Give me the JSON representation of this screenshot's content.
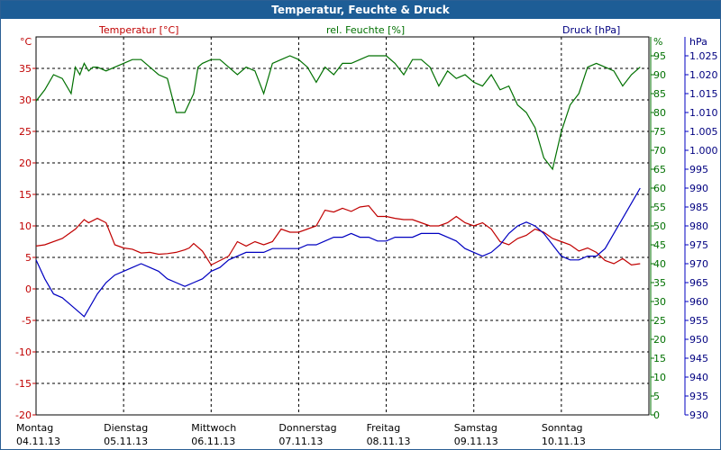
{
  "window": {
    "title": "Temperatur, Feuchte & Druck"
  },
  "colors": {
    "temperature": "#c00000",
    "humidity": "#007000",
    "pressure": "#0000c0",
    "titlebar": "#1d5d96"
  },
  "chart_data": {
    "type": "line",
    "title": "Temperatur, Feuchte & Druck",
    "grid": true,
    "x_ticks": [
      {
        "day": "Montag",
        "date": "04.11.13"
      },
      {
        "day": "Dienstag",
        "date": "05.11.13"
      },
      {
        "day": "Mittwoch",
        "date": "06.11.13"
      },
      {
        "day": "Donnerstag",
        "date": "07.11.13"
      },
      {
        "day": "Freitag",
        "date": "08.11.13"
      },
      {
        "day": "Samstag",
        "date": "09.11.13"
      },
      {
        "day": "Sonntag",
        "date": "10.11.13"
      }
    ],
    "xlim": [
      "04.11.13 00:00",
      "11.11.13 00:00"
    ],
    "axes": {
      "temperature": {
        "label": "Temperatur [°C]",
        "unit": "°C",
        "ylim": [
          -20,
          40
        ],
        "ticks": [
          "35",
          "30",
          "25",
          "20",
          "15",
          "10",
          "5",
          "0",
          "-5",
          "-10",
          "-15",
          "-20"
        ]
      },
      "humidity": {
        "label": "rel. Feuchte [%]",
        "unit": "%",
        "ylim": [
          0,
          100
        ],
        "ticks": [
          "95",
          "90",
          "85",
          "80",
          "75",
          "70",
          "65",
          "60",
          "55",
          "50",
          "45",
          "40",
          "35",
          "30",
          "25",
          "20",
          "15",
          "10",
          "5",
          "0"
        ]
      },
      "pressure": {
        "label": "Druck [hPa]",
        "unit": "hPa",
        "ylim": [
          930,
          1030
        ],
        "ticks": [
          "1.025",
          "1.020",
          "1.015",
          "1.010",
          "1.005",
          "1.000",
          "995",
          "990",
          "985",
          "980",
          "975",
          "970",
          "965",
          "960",
          "955",
          "950",
          "945",
          "940",
          "935",
          "930"
        ]
      }
    },
    "series": [
      {
        "name": "Temperatur [°C]",
        "axis": "temperature",
        "x_days": [
          0,
          0.1,
          0.3,
          0.45,
          0.55,
          0.6,
          0.7,
          0.8,
          0.9,
          1.0,
          1.1,
          1.2,
          1.3,
          1.4,
          1.5,
          1.6,
          1.7,
          1.75,
          1.8,
          1.9,
          2.0,
          2.1,
          2.2,
          2.3,
          2.4,
          2.5,
          2.6,
          2.7,
          2.8,
          2.9,
          3.0,
          3.1,
          3.2,
          3.3,
          3.4,
          3.5,
          3.6,
          3.7,
          3.8,
          3.9,
          4.0,
          4.1,
          4.2,
          4.3,
          4.4,
          4.5,
          4.6,
          4.7,
          4.8,
          4.9,
          5.0,
          5.1,
          5.2,
          5.3,
          5.4,
          5.5,
          5.6,
          5.7,
          5.8,
          5.9,
          6.0,
          6.1,
          6.2,
          6.3,
          6.4,
          6.5,
          6.6,
          6.7,
          6.8,
          6.9
        ],
        "values": [
          6.8,
          7,
          8,
          9.5,
          11,
          10.5,
          11.2,
          10.5,
          7,
          6.5,
          6.3,
          5.7,
          5.8,
          5.5,
          5.6,
          5.8,
          6.2,
          6.5,
          7.2,
          6.0,
          3.8,
          4.5,
          5.2,
          7.5,
          6.8,
          7.5,
          7.0,
          7.5,
          9.5,
          9.0,
          9.0,
          9.5,
          10,
          12.5,
          12.2,
          12.8,
          12.3,
          13.0,
          13.2,
          11.5,
          11.5,
          11.2,
          11.0,
          11.0,
          10.5,
          10.0,
          10.0,
          10.5,
          11.5,
          10.5,
          10.0,
          10.5,
          9.5,
          7.5,
          7.0,
          8.0,
          8.5,
          9.5,
          9.0,
          8.0,
          7.5,
          7.0,
          6.0,
          6.5,
          5.8,
          4.5,
          4.0,
          4.8,
          3.8,
          4.0
        ]
      },
      {
        "name": "rel. Feuchte [%]",
        "axis": "humidity",
        "x_days": [
          0,
          0.1,
          0.2,
          0.3,
          0.4,
          0.45,
          0.5,
          0.55,
          0.6,
          0.65,
          0.7,
          0.8,
          0.9,
          1.0,
          1.1,
          1.2,
          1.3,
          1.4,
          1.5,
          1.6,
          1.7,
          1.8,
          1.85,
          1.9,
          2.0,
          2.1,
          2.2,
          2.3,
          2.4,
          2.5,
          2.6,
          2.7,
          2.8,
          2.9,
          3.0,
          3.1,
          3.2,
          3.3,
          3.4,
          3.5,
          3.6,
          3.7,
          3.8,
          3.9,
          4.0,
          4.1,
          4.2,
          4.3,
          4.4,
          4.5,
          4.6,
          4.7,
          4.8,
          4.9,
          5.0,
          5.1,
          5.2,
          5.3,
          5.4,
          5.5,
          5.6,
          5.7,
          5.8,
          5.9,
          6.0,
          6.1,
          6.2,
          6.3,
          6.4,
          6.5,
          6.6,
          6.7,
          6.8,
          6.9
        ],
        "values": [
          83,
          86,
          90,
          89,
          85,
          92,
          90,
          93,
          91,
          92,
          92,
          91,
          92,
          93,
          94,
          94,
          92,
          90,
          89,
          80,
          80,
          85,
          92,
          93,
          94,
          94,
          92,
          90,
          92,
          91,
          85,
          93,
          94,
          95,
          94,
          92,
          88,
          92,
          90,
          93,
          93,
          94,
          95,
          95,
          95,
          93,
          90,
          94,
          94,
          92,
          87,
          91,
          89,
          90,
          88,
          87,
          90,
          86,
          87,
          82,
          80,
          76,
          68,
          65,
          75,
          82,
          85,
          92,
          93,
          92,
          91,
          87,
          90,
          92
        ]
      },
      {
        "name": "Druck [hPa]",
        "axis": "pressure",
        "x_days": [
          0,
          0.1,
          0.2,
          0.3,
          0.4,
          0.5,
          0.55,
          0.6,
          0.7,
          0.8,
          0.9,
          1.0,
          1.1,
          1.2,
          1.3,
          1.4,
          1.5,
          1.6,
          1.7,
          1.8,
          1.9,
          2.0,
          2.1,
          2.2,
          2.3,
          2.4,
          2.5,
          2.6,
          2.7,
          2.8,
          2.9,
          3.0,
          3.1,
          3.2,
          3.3,
          3.4,
          3.5,
          3.6,
          3.7,
          3.8,
          3.9,
          4.0,
          4.1,
          4.2,
          4.3,
          4.4,
          4.5,
          4.6,
          4.7,
          4.8,
          4.9,
          5.0,
          5.1,
          5.2,
          5.3,
          5.4,
          5.5,
          5.6,
          5.7,
          5.8,
          5.9,
          6.0,
          6.1,
          6.2,
          6.3,
          6.4,
          6.5,
          6.6,
          6.7,
          6.8,
          6.9
        ],
        "values": [
          971,
          966,
          962,
          961,
          959,
          957,
          956,
          958,
          962,
          965,
          967,
          968,
          969,
          970,
          969,
          968,
          966,
          965,
          964,
          965,
          966,
          968,
          969,
          971,
          972,
          973,
          973,
          973,
          974,
          974,
          974,
          974,
          975,
          975,
          976,
          977,
          977,
          978,
          977,
          977,
          976,
          976,
          977,
          977,
          977,
          978,
          978,
          978,
          977,
          976,
          974,
          973,
          972,
          973,
          975,
          978,
          980,
          981,
          980,
          978,
          975,
          972,
          971,
          971,
          972,
          972,
          974,
          978,
          982,
          986,
          990
        ]
      }
    ],
    "legend": [
      "Temperatur [°C]",
      "rel. Feuchte [%]",
      "Druck [hPa]"
    ]
  }
}
